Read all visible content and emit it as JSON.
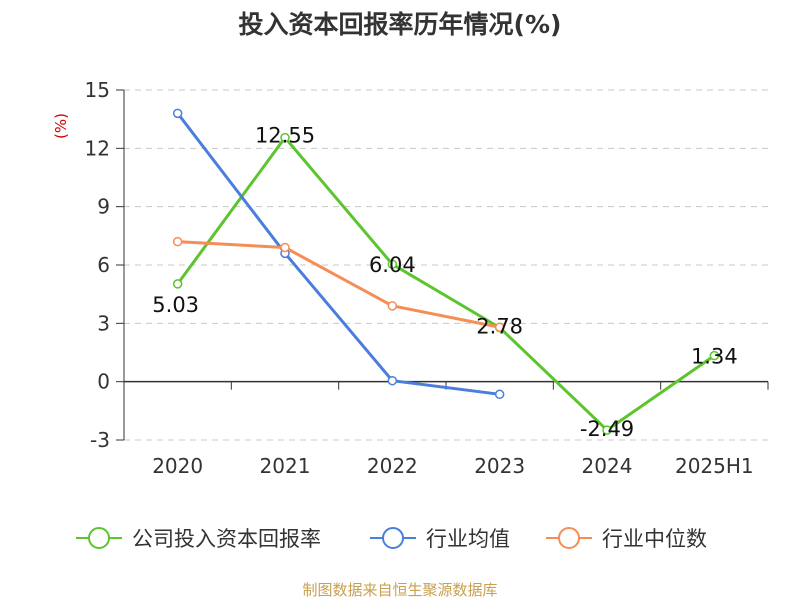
{
  "chart_data": {
    "type": "line",
    "title": "投入资本回报率历年情况(%)",
    "ylabel": "(%)",
    "xlabel": "",
    "categories": [
      "2020",
      "2021",
      "2022",
      "2023",
      "2024",
      "2025H1"
    ],
    "ylim": [
      -3,
      15
    ],
    "yticks": [
      "-3",
      "0",
      "3",
      "6",
      "9",
      "12",
      "15"
    ],
    "grid": true,
    "legend_position": "bottom",
    "series": [
      {
        "name": "公司投入资本回报率",
        "color": "#5cc52e",
        "values": [
          5.03,
          12.55,
          6.04,
          2.78,
          -2.49,
          1.34
        ],
        "labels": [
          "5.03",
          "12.55",
          "6.04",
          "2.78",
          "-2.49",
          "1.34"
        ]
      },
      {
        "name": "行业均值",
        "color": "#4a7ddc",
        "values": [
          13.8,
          6.6,
          0.05,
          -0.65,
          null,
          null
        ]
      },
      {
        "name": "行业中位数",
        "color": "#f68d55",
        "values": [
          7.2,
          6.9,
          3.9,
          2.8,
          null,
          null
        ]
      }
    ],
    "source": "制图数据来自恒生聚源数据库"
  },
  "colors": {
    "title": "#333333",
    "ylabel": "#cc0000",
    "axis": "#333333",
    "grid": "#c8c8c8",
    "tick_text": "#333333",
    "data_label": "#111111",
    "source": "#c8a050"
  }
}
